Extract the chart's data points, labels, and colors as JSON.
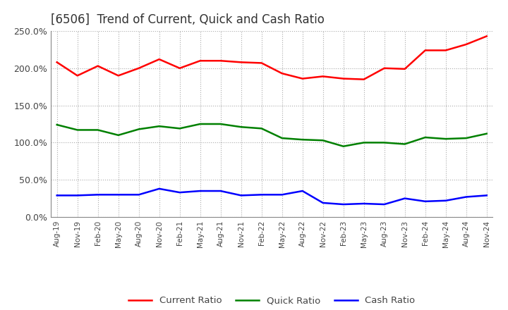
{
  "title": "[6506]  Trend of Current, Quick and Cash Ratio",
  "x_labels": [
    "Aug-19",
    "Nov-19",
    "Feb-20",
    "May-20",
    "Aug-20",
    "Nov-20",
    "Feb-21",
    "May-21",
    "Aug-21",
    "Nov-21",
    "Feb-22",
    "May-22",
    "Aug-22",
    "Nov-22",
    "Feb-23",
    "May-23",
    "Aug-23",
    "Nov-23",
    "Feb-24",
    "May-24",
    "Aug-24",
    "Nov-24"
  ],
  "current_ratio": [
    208,
    190,
    203,
    190,
    200,
    212,
    200,
    210,
    210,
    208,
    207,
    193,
    186,
    189,
    186,
    185,
    200,
    199,
    224,
    224,
    232,
    243
  ],
  "quick_ratio": [
    124,
    117,
    117,
    110,
    118,
    122,
    119,
    125,
    125,
    121,
    119,
    106,
    104,
    103,
    95,
    100,
    100,
    98,
    107,
    105,
    106,
    112
  ],
  "cash_ratio": [
    29,
    29,
    30,
    30,
    30,
    38,
    33,
    35,
    35,
    29,
    30,
    30,
    35,
    19,
    17,
    18,
    17,
    25,
    21,
    22,
    27,
    29
  ],
  "ylim": [
    0,
    250
  ],
  "yticks": [
    0,
    50,
    100,
    150,
    200,
    250
  ],
  "current_color": "#ff0000",
  "quick_color": "#008000",
  "cash_color": "#0000ff",
  "background_color": "#ffffff",
  "grid_color": "#aaaaaa"
}
